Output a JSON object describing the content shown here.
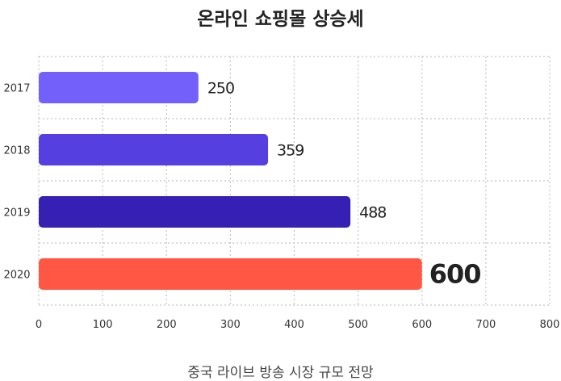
{
  "title": "온라인 쇼핑몰 상승세",
  "footer": "중국 라이브 방송 시장 규모 전망",
  "chart_data": {
    "type": "bar",
    "orientation": "horizontal",
    "categories": [
      "2017",
      "2018",
      "2019",
      "2020"
    ],
    "values": [
      250,
      359,
      488,
      600
    ],
    "value_labels": [
      "250",
      "359",
      "488",
      "600"
    ],
    "xlim": [
      0,
      800
    ],
    "x_ticks": [
      "0",
      "100",
      "200",
      "300",
      "400",
      "500",
      "600",
      "700",
      "800"
    ],
    "grid": true,
    "bar_colors": [
      "#7360fb",
      "#553fe0",
      "#3520b3",
      "#ff5743"
    ],
    "highlight_index": 3,
    "highlight_color": "#f4533d",
    "label_color": "#222222"
  }
}
